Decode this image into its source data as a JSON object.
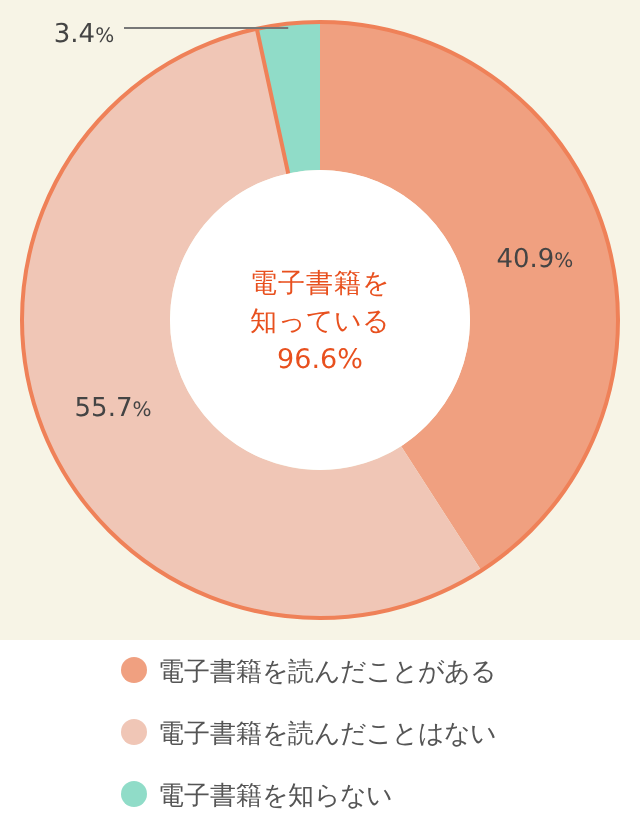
{
  "chart_data": {
    "type": "donut",
    "categories": [
      "電子書籍を読んだことがある",
      "電子書籍を読んだことはない",
      "電子書籍を知らない"
    ],
    "values": [
      40.9,
      55.7,
      3.4
    ],
    "colors": [
      "#f0a080",
      "#f0c6b6",
      "#90dcc8"
    ],
    "value_labels": [
      "40.9%",
      "55.7%",
      "3.4%"
    ],
    "annotations": [
      "電子書籍を知っている",
      "96.6%"
    ],
    "legend": "bottom"
  }
}
